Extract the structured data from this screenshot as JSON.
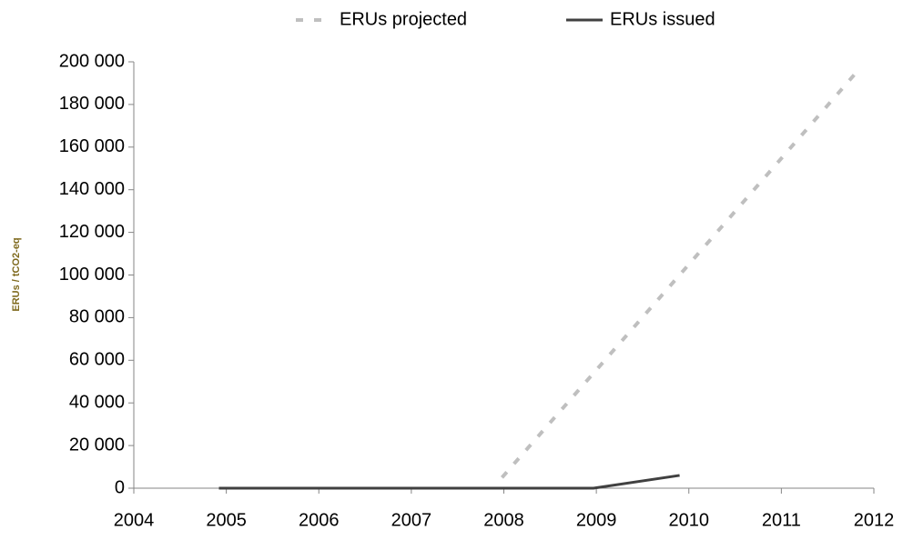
{
  "chart_data": {
    "type": "line",
    "y_label": "ERUs / tCO2-eq",
    "xlim": [
      2004,
      2012
    ],
    "xticks": [
      2004,
      2005,
      2006,
      2007,
      2008,
      2009,
      2010,
      2011,
      2012
    ],
    "ylim": [
      0,
      200000
    ],
    "yticks": [
      {
        "value": 0,
        "label": "0"
      },
      {
        "value": 20000,
        "label": "20 000"
      },
      {
        "value": 40000,
        "label": "40 000"
      },
      {
        "value": 60000,
        "label": "60 000"
      },
      {
        "value": 80000,
        "label": "80 000"
      },
      {
        "value": 100000,
        "label": "100 000"
      },
      {
        "value": 120000,
        "label": "120 000"
      },
      {
        "value": 140000,
        "label": "140 000"
      },
      {
        "value": 160000,
        "label": "160 000"
      },
      {
        "value": 180000,
        "label": "180 000"
      },
      {
        "value": 200000,
        "label": "200 000"
      }
    ],
    "legend": "top",
    "series": [
      {
        "name": "ERUs projected",
        "color": "#bfbfbf",
        "dashed": true,
        "x": [
          2007.98,
          2009.9,
          2011.85
        ],
        "values": [
          5000,
          100000,
          197000
        ]
      },
      {
        "name": "ERUs issued",
        "color": "#404040",
        "dashed": false,
        "x": [
          2004.92,
          2008.97,
          2009.9
        ],
        "values": [
          0,
          0,
          6000
        ]
      }
    ]
  }
}
